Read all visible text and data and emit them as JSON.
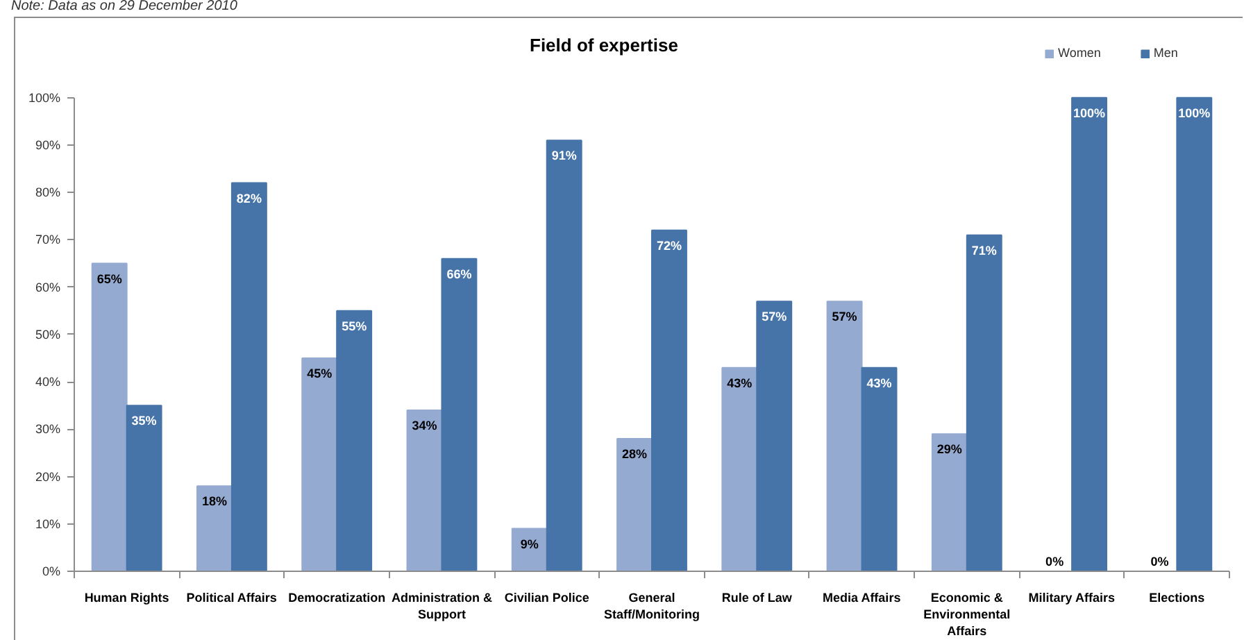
{
  "chart_data": {
    "type": "bar",
    "title": "Field of expertise",
    "annotations": [
      "Note: Data as on 29 December 2010"
    ],
    "categories": [
      "Human Rights",
      "Political Affairs",
      "Democratization",
      "Administration & Support",
      "Civilian Police",
      "General Staff/Monitoring",
      "Rule of Law",
      "Media Affairs",
      "Economic & Environmental Affairs",
      "Military Affairs",
      "Elections"
    ],
    "series": [
      {
        "name": "Women",
        "color": "#95aad1",
        "values": [
          65,
          18,
          45,
          34,
          9,
          28,
          43,
          57,
          29,
          0,
          0
        ],
        "value_labels": [
          "65%",
          "18%",
          "45%",
          "34%",
          "9%",
          "28%",
          "43%",
          "57%",
          "29%",
          "0%",
          "0%"
        ]
      },
      {
        "name": "Men",
        "color": "#4674a9",
        "values": [
          35,
          82,
          55,
          66,
          91,
          72,
          57,
          43,
          71,
          100,
          100
        ],
        "value_labels": [
          "35%",
          "82%",
          "55%",
          "66%",
          "91%",
          "72%",
          "57%",
          "43%",
          "71%",
          "100%",
          "100%"
        ]
      }
    ],
    "ylim": [
      0,
      100
    ],
    "yticks": [
      {
        "value": 0,
        "label": "0%"
      },
      {
        "value": 10,
        "label": "10%"
      },
      {
        "value": 20,
        "label": "20%"
      },
      {
        "value": 30,
        "label": "30%"
      },
      {
        "value": 40,
        "label": "40%"
      },
      {
        "value": 50,
        "label": "50%"
      },
      {
        "value": 60,
        "label": "60%"
      },
      {
        "value": 70,
        "label": "70%"
      },
      {
        "value": 80,
        "label": "80%"
      },
      {
        "value": 90,
        "label": "90%"
      },
      {
        "value": 100,
        "label": "100%"
      }
    ],
    "grid": false,
    "legend": "top right"
  }
}
